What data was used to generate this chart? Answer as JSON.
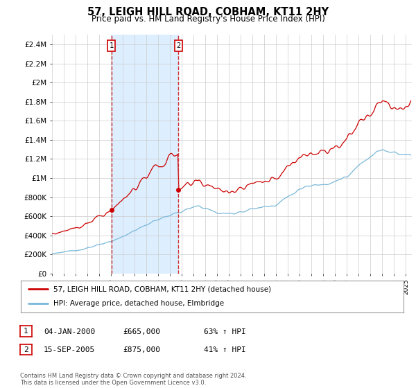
{
  "title": "57, LEIGH HILL ROAD, COBHAM, KT11 2HY",
  "subtitle": "Price paid vs. HM Land Registry's House Price Index (HPI)",
  "legend_line1": "57, LEIGH HILL ROAD, COBHAM, KT11 2HY (detached house)",
  "legend_line2": "HPI: Average price, detached house, Elmbridge",
  "sale1_date": "04-JAN-2000",
  "sale1_price": "£665,000",
  "sale1_hpi": "63% ↑ HPI",
  "sale1_year": 2000.04,
  "sale1_value": 665000,
  "sale2_date": "15-SEP-2005",
  "sale2_price": "£875,000",
  "sale2_hpi": "41% ↑ HPI",
  "sale2_year": 2005.71,
  "sale2_value": 875000,
  "hpi_color": "#7ab8d9",
  "price_color": "#cc0000",
  "shade_color": "#ddeeff",
  "marker_color": "#cc0000",
  "vline1_color": "#cc3333",
  "vline2_color": "#cc3333",
  "ylim_min": 0,
  "ylim_max": 2500000,
  "yticks": [
    0,
    200000,
    400000,
    600000,
    800000,
    1000000,
    1200000,
    1400000,
    1600000,
    1800000,
    2000000,
    2200000,
    2400000
  ],
  "ytick_labels": [
    "£0",
    "£200K",
    "£400K",
    "£600K",
    "£800K",
    "£1M",
    "£1.2M",
    "£1.4M",
    "£1.6M",
    "£1.8M",
    "£2M",
    "£2.2M",
    "£2.4M"
  ],
  "footer": "Contains HM Land Registry data © Crown copyright and database right 2024.\nThis data is licensed under the Open Government Licence v3.0.",
  "background_color": "#ffffff",
  "grid_color": "#cccccc",
  "xlim_min": 1995,
  "xlim_max": 2025.5
}
